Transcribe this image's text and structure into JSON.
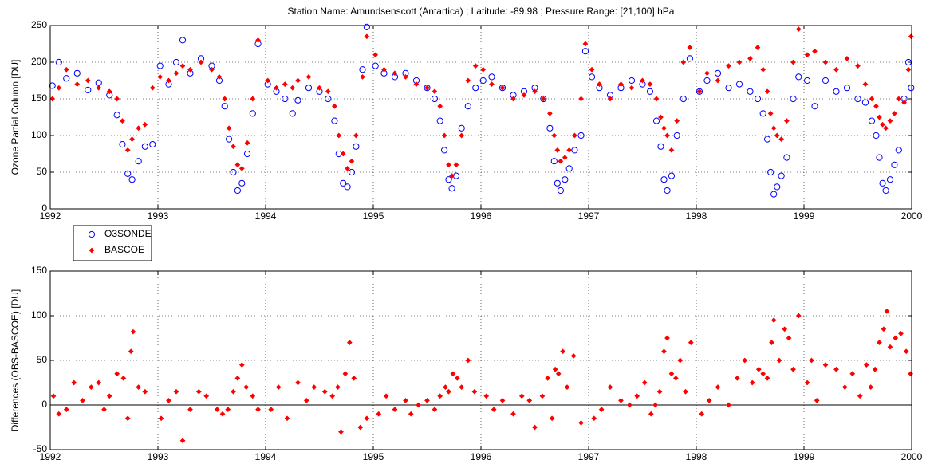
{
  "chart_data": [
    {
      "type": "scatter",
      "title": "Station Name: Amundsenscott (Antartica) ; Latitude: -89.98 ; Pressure Range: [21,100] hPa",
      "ylabel": "Ozone Partial Column [DU]",
      "xlim": [
        1992,
        2000
      ],
      "xticks": [
        1992,
        1993,
        1994,
        1995,
        1996,
        1997,
        1998,
        1999,
        2000
      ],
      "ylim": [
        0,
        250
      ],
      "yticks": [
        0,
        50,
        100,
        150,
        200,
        250
      ],
      "grid": true,
      "legend": "below-left",
      "series": [
        {
          "name": "O3SONDE",
          "color": "#0000ff",
          "marker": "circle",
          "x": [
            1992.02,
            1992.08,
            1992.15,
            1992.25,
            1992.35,
            1992.45,
            1992.55,
            1992.62,
            1992.67,
            1992.72,
            1992.76,
            1992.82,
            1992.88,
            1992.95,
            1993.02,
            1993.1,
            1993.17,
            1993.23,
            1993.3,
            1993.4,
            1993.5,
            1993.57,
            1993.62,
            1993.66,
            1993.7,
            1993.74,
            1993.78,
            1993.83,
            1993.88,
            1993.93,
            1994.02,
            1994.1,
            1994.18,
            1994.25,
            1994.3,
            1994.4,
            1994.5,
            1994.58,
            1994.64,
            1994.68,
            1994.72,
            1994.76,
            1994.8,
            1994.84,
            1994.9,
            1994.94,
            1995.02,
            1995.1,
            1995.2,
            1995.3,
            1995.4,
            1995.5,
            1995.57,
            1995.62,
            1995.66,
            1995.7,
            1995.73,
            1995.77,
            1995.82,
            1995.88,
            1995.95,
            1996.02,
            1996.1,
            1996.2,
            1996.3,
            1996.4,
            1996.5,
            1996.58,
            1996.64,
            1996.68,
            1996.71,
            1996.74,
            1996.78,
            1996.82,
            1996.87,
            1996.93,
            1996.97,
            1997.03,
            1997.1,
            1997.2,
            1997.3,
            1997.4,
            1997.5,
            1997.57,
            1997.63,
            1997.67,
            1997.7,
            1997.73,
            1997.77,
            1997.82,
            1997.88,
            1997.94,
            1998.03,
            1998.1,
            1998.2,
            1998.3,
            1998.4,
            1998.5,
            1998.57,
            1998.62,
            1998.66,
            1998.69,
            1998.72,
            1998.75,
            1998.79,
            1998.84,
            1998.9,
            1998.95,
            1999.03,
            1999.1,
            1999.2,
            1999.3,
            1999.4,
            1999.5,
            1999.57,
            1999.63,
            1999.67,
            1999.7,
            1999.73,
            1999.76,
            1999.8,
            1999.84,
            1999.88,
            1999.93,
            1999.97,
            1999.995
          ],
          "values": [
            168,
            200,
            178,
            185,
            162,
            172,
            155,
            128,
            88,
            48,
            40,
            65,
            85,
            88,
            195,
            170,
            200,
            230,
            185,
            205,
            195,
            175,
            140,
            95,
            50,
            25,
            35,
            75,
            130,
            225,
            170,
            160,
            150,
            130,
            148,
            165,
            160,
            150,
            120,
            75,
            35,
            30,
            50,
            85,
            190,
            248,
            195,
            185,
            180,
            185,
            175,
            165,
            150,
            120,
            80,
            40,
            28,
            45,
            110,
            140,
            165,
            175,
            180,
            165,
            155,
            160,
            165,
            150,
            110,
            65,
            35,
            25,
            40,
            55,
            80,
            100,
            215,
            180,
            165,
            155,
            165,
            175,
            170,
            160,
            120,
            85,
            40,
            25,
            45,
            100,
            150,
            205,
            160,
            175,
            185,
            165,
            170,
            160,
            150,
            130,
            95,
            50,
            20,
            30,
            45,
            70,
            150,
            180,
            175,
            140,
            175,
            160,
            165,
            150,
            145,
            120,
            100,
            70,
            35,
            25,
            40,
            60,
            80,
            150,
            200,
            165
          ]
        },
        {
          "name": "BASCOE",
          "color": "#ff0000",
          "marker": "diamond",
          "x": [
            1992.02,
            1992.08,
            1992.15,
            1992.25,
            1992.35,
            1992.45,
            1992.55,
            1992.62,
            1992.67,
            1992.72,
            1992.76,
            1992.82,
            1992.88,
            1992.95,
            1993.02,
            1993.1,
            1993.17,
            1993.23,
            1993.3,
            1993.4,
            1993.5,
            1993.57,
            1993.62,
            1993.66,
            1993.7,
            1993.74,
            1993.78,
            1993.83,
            1993.88,
            1993.93,
            1994.02,
            1994.1,
            1994.18,
            1994.25,
            1994.3,
            1994.4,
            1994.5,
            1994.58,
            1994.64,
            1994.68,
            1994.72,
            1994.76,
            1994.8,
            1994.84,
            1994.9,
            1994.94,
            1995.02,
            1995.1,
            1995.2,
            1995.3,
            1995.4,
            1995.5,
            1995.57,
            1995.62,
            1995.66,
            1995.7,
            1995.73,
            1995.77,
            1995.82,
            1995.88,
            1995.95,
            1996.02,
            1996.1,
            1996.2,
            1996.3,
            1996.4,
            1996.5,
            1996.58,
            1996.64,
            1996.68,
            1996.71,
            1996.74,
            1996.78,
            1996.82,
            1996.87,
            1996.93,
            1996.97,
            1997.03,
            1997.1,
            1997.2,
            1997.3,
            1997.4,
            1997.5,
            1997.57,
            1997.63,
            1997.67,
            1997.7,
            1997.73,
            1997.77,
            1997.82,
            1997.88,
            1997.94,
            1998.03,
            1998.1,
            1998.2,
            1998.3,
            1998.4,
            1998.5,
            1998.57,
            1998.62,
            1998.66,
            1998.69,
            1998.72,
            1998.75,
            1998.79,
            1998.84,
            1998.9,
            1998.95,
            1999.03,
            1999.1,
            1999.2,
            1999.3,
            1999.4,
            1999.5,
            1999.57,
            1999.63,
            1999.67,
            1999.7,
            1999.73,
            1999.76,
            1999.8,
            1999.84,
            1999.88,
            1999.93,
            1999.97,
            1999.995
          ],
          "values": [
            150,
            165,
            190,
            170,
            175,
            165,
            160,
            150,
            120,
            80,
            95,
            110,
            115,
            165,
            180,
            175,
            185,
            195,
            190,
            200,
            190,
            180,
            150,
            110,
            85,
            60,
            55,
            90,
            150,
            230,
            175,
            165,
            170,
            165,
            175,
            180,
            165,
            160,
            140,
            100,
            75,
            55,
            65,
            100,
            180,
            235,
            210,
            190,
            185,
            180,
            170,
            165,
            160,
            140,
            100,
            60,
            45,
            60,
            100,
            175,
            195,
            190,
            170,
            165,
            150,
            155,
            160,
            150,
            130,
            100,
            80,
            65,
            70,
            80,
            100,
            150,
            225,
            190,
            170,
            150,
            170,
            165,
            175,
            170,
            150,
            125,
            110,
            100,
            80,
            120,
            200,
            220,
            160,
            185,
            175,
            195,
            200,
            205,
            220,
            190,
            160,
            130,
            110,
            100,
            95,
            120,
            200,
            245,
            210,
            215,
            200,
            190,
            205,
            195,
            170,
            150,
            140,
            125,
            115,
            110,
            120,
            130,
            150,
            145,
            190,
            235
          ]
        }
      ]
    },
    {
      "type": "scatter",
      "ylabel": "Differences (OBS-BASCOE) [DU]",
      "xlim": [
        1992,
        2000
      ],
      "xticks": [
        1992,
        1993,
        1994,
        1995,
        1996,
        1997,
        1998,
        1999,
        2000
      ],
      "ylim": [
        -50,
        150
      ],
      "yticks": [
        -50,
        0,
        50,
        100,
        150
      ],
      "grid": true,
      "zero_line": true,
      "series": [
        {
          "color": "#ff0000",
          "marker": "diamond",
          "x": [
            1992.03,
            1992.08,
            1992.15,
            1992.22,
            1992.3,
            1992.38,
            1992.45,
            1992.5,
            1992.55,
            1992.62,
            1992.68,
            1992.72,
            1992.75,
            1992.77,
            1992.82,
            1992.88,
            1993.03,
            1993.1,
            1993.17,
            1993.23,
            1993.3,
            1993.38,
            1993.45,
            1993.55,
            1993.6,
            1993.65,
            1993.7,
            1993.74,
            1993.78,
            1993.82,
            1993.88,
            1993.93,
            1994.05,
            1994.12,
            1994.2,
            1994.3,
            1994.38,
            1994.45,
            1994.55,
            1994.62,
            1994.67,
            1994.7,
            1994.74,
            1994.78,
            1994.82,
            1994.88,
            1994.94,
            1995.05,
            1995.12,
            1995.2,
            1995.3,
            1995.35,
            1995.42,
            1995.5,
            1995.57,
            1995.62,
            1995.67,
            1995.7,
            1995.74,
            1995.78,
            1995.82,
            1995.88,
            1995.94,
            1996.05,
            1996.12,
            1996.2,
            1996.3,
            1996.38,
            1996.45,
            1996.5,
            1996.57,
            1996.62,
            1996.66,
            1996.69,
            1996.72,
            1996.76,
            1996.8,
            1996.86,
            1996.93,
            1997.05,
            1997.12,
            1997.2,
            1997.3,
            1997.38,
            1997.45,
            1997.52,
            1997.58,
            1997.62,
            1997.66,
            1997.7,
            1997.73,
            1997.77,
            1997.81,
            1997.85,
            1997.9,
            1997.95,
            1998.05,
            1998.12,
            1998.2,
            1998.3,
            1998.38,
            1998.45,
            1998.52,
            1998.58,
            1998.62,
            1998.66,
            1998.7,
            1998.72,
            1998.77,
            1998.82,
            1998.86,
            1998.9,
            1998.95,
            1999.03,
            1999.07,
            1999.12,
            1999.2,
            1999.3,
            1999.38,
            1999.45,
            1999.52,
            1999.58,
            1999.62,
            1999.66,
            1999.7,
            1999.74,
            1999.77,
            1999.8,
            1999.85,
            1999.9,
            1999.95,
            1999.99
          ],
          "values": [
            10,
            -10,
            -5,
            25,
            5,
            20,
            25,
            -5,
            10,
            35,
            30,
            -15,
            60,
            82,
            20,
            15,
            -15,
            5,
            15,
            -40,
            -5,
            15,
            10,
            -5,
            -10,
            -5,
            15,
            30,
            45,
            20,
            10,
            -5,
            -5,
            20,
            -15,
            25,
            5,
            20,
            15,
            10,
            20,
            -30,
            35,
            70,
            30,
            -25,
            -15,
            -10,
            10,
            -5,
            5,
            -10,
            0,
            5,
            -5,
            10,
            20,
            15,
            35,
            30,
            20,
            50,
            15,
            10,
            -5,
            5,
            -10,
            10,
            5,
            -25,
            10,
            30,
            -15,
            40,
            35,
            60,
            20,
            55,
            -20,
            -15,
            -5,
            20,
            5,
            0,
            10,
            25,
            -10,
            0,
            15,
            60,
            75,
            35,
            30,
            50,
            15,
            70,
            -10,
            5,
            20,
            0,
            30,
            50,
            25,
            40,
            35,
            30,
            70,
            95,
            50,
            85,
            75,
            40,
            100,
            25,
            50,
            5,
            45,
            40,
            20,
            35,
            10,
            45,
            20,
            40,
            70,
            85,
            105,
            65,
            75,
            80,
            60,
            35
          ]
        }
      ]
    }
  ]
}
